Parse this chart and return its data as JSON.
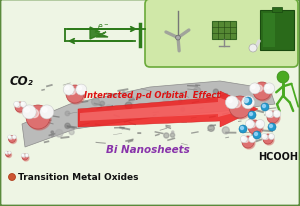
{
  "bg_color": "#eef5e4",
  "border_color": "#5a8a3c",
  "title_text": "Interacted p-d Orbital  Effect",
  "title_color": "#dd1111",
  "bi_nanosheets_label": "Bi Nanosheets",
  "bi_color": "#8833aa",
  "hcooh_label": "HCOOH",
  "co2_label": "CO₂",
  "tmo_label": "Transition Metal Oxides",
  "tmo_color": "#111111",
  "green_box_color": "#d0e8a8",
  "green_box_border": "#6aaa3a",
  "electron_color": "#2d7a1a",
  "water_red": "#d96060",
  "water_white": "#f8f8f8",
  "tmo_dot_color": "#2299bb",
  "sheet_gray": "#b0b0b0",
  "sheet_dark": "#888888",
  "figure_bg": "#eef5e4",
  "circuit_color": "#2d7a1a",
  "arrow_red": "#dd2222",
  "arrow_pink": "#f08080",
  "person_color": "#4aaa22"
}
